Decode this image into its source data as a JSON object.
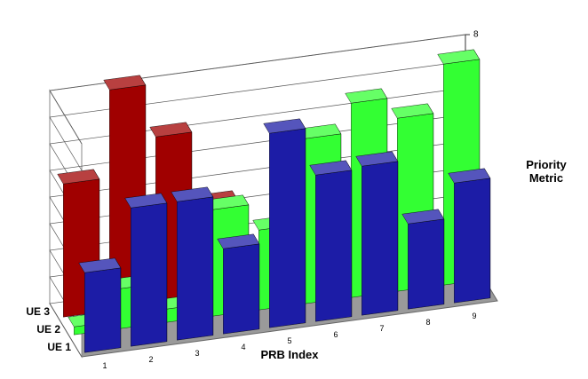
{
  "chart_data": {
    "type": "bar3d",
    "xlabel": "PRB Index",
    "ylabel": "Priority Metric",
    "categories": [
      "1",
      "2",
      "3",
      "4",
      "5",
      "6",
      "7",
      "8",
      "9"
    ],
    "series": [
      {
        "name": "UE 1",
        "color": "#1c1ca6",
        "values": [
          3.0,
          5.2,
          5.2,
          3.2,
          7.3,
          5.5,
          5.6,
          3.2,
          4.5
        ]
      },
      {
        "name": "UE 2",
        "color": "#33ff33",
        "values": [
          0.3,
          1.5,
          0.5,
          4.0,
          3.0,
          6.2,
          7.3,
          6.5,
          8.3
        ]
      },
      {
        "name": "UE 3",
        "color": "#a00000",
        "values": [
          5.0,
          8.3,
          6.3,
          3.5,
          0,
          0,
          0,
          0,
          0
        ]
      }
    ],
    "ylim": [
      0,
      8
    ],
    "yticks": [
      0,
      1,
      2,
      3,
      4,
      5,
      6,
      7,
      8
    ],
    "grid": true
  }
}
